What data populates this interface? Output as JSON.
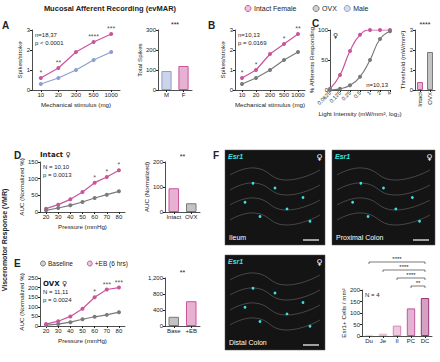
{
  "figure": {
    "title": "Mucosal Afferent Recording (evMAR)",
    "side_title": "Visceromotor Response (VMR)",
    "legend": [
      {
        "name": "Intact Female",
        "color": "#c9559c"
      },
      {
        "name": "OVX",
        "color": "#7a7a7a"
      },
      {
        "name": "Male",
        "color": "#8c9fce"
      }
    ]
  },
  "chart_data": [
    {
      "panel": "A",
      "type": "line",
      "x_label": "Mechanical stimulus (mg)",
      "y_label": "Spikes/stroke",
      "categories": [
        "10",
        "20",
        "200",
        "500",
        "1000"
      ],
      "series": [
        {
          "name": "Intact Female",
          "color": "#c9559c",
          "values": [
            0.6,
            1.1,
            1.9,
            2.4,
            2.8
          ]
        },
        {
          "name": "Male",
          "color": "#8c9fce",
          "values": [
            0.3,
            0.6,
            1.0,
            1.5,
            1.9
          ]
        }
      ],
      "ylim": [
        0,
        3
      ],
      "yticks": [
        0,
        1,
        2,
        3
      ],
      "grid": false,
      "annotations": [
        {
          "text": "*",
          "x": "10"
        },
        {
          "text": "**",
          "x": "20"
        },
        {
          "text": "****",
          "x": "500"
        },
        {
          "text": "***",
          "x": "1000"
        }
      ],
      "stats": [
        "n=18,37",
        "p < 0.0001"
      ]
    },
    {
      "type": "bar",
      "y_label": "Total Spikes",
      "categories": [
        "M",
        "F"
      ],
      "values": [
        95,
        120
      ],
      "colors": [
        "#8c9fce",
        "#c9559c"
      ],
      "ylim": [
        0,
        300
      ],
      "yticks": [
        0,
        100,
        200,
        300
      ],
      "grid": false,
      "annotations": [
        {
          "text": "***"
        }
      ]
    },
    {
      "panel": "B",
      "type": "line",
      "x_label": "Mechanical stimulus (mg)",
      "y_label": "Spikes/stroke",
      "categories": [
        "10",
        "20",
        "200",
        "500",
        "1000"
      ],
      "series": [
        {
          "name": "Intact Female",
          "color": "#c9559c",
          "values": [
            0.6,
            1.0,
            1.8,
            2.3,
            2.8
          ]
        },
        {
          "name": "OVX",
          "color": "#7a7a7a",
          "values": [
            0.3,
            0.6,
            1.0,
            1.5,
            1.9
          ]
        }
      ],
      "ylim": [
        0,
        3
      ],
      "yticks": [
        0,
        1,
        2,
        3
      ],
      "grid": false,
      "annotations": [
        {
          "text": "*",
          "x": "10"
        },
        {
          "text": "*",
          "x": "20"
        },
        {
          "text": "*",
          "x": "500"
        },
        {
          "text": "**",
          "x": "1000"
        }
      ],
      "stats": [
        "n=10,13",
        "p = 0.0169"
      ]
    },
    {
      "panel": "C",
      "type": "line",
      "log": "x",
      "heading": "♀",
      "x_label": "Light Intensity (mW/mm², log₂)",
      "y_label": "% Afferents Responding",
      "x": [
        0.0625,
        0.125,
        0.25,
        0.5,
        1,
        2,
        4
      ],
      "series": [
        {
          "name": "Intact Female",
          "color": "#c9559c",
          "values": [
            2,
            25,
            65,
            92,
            100,
            100,
            100
          ]
        },
        {
          "name": "OVX",
          "color": "#7a7a7a",
          "values": [
            0,
            2,
            8,
            22,
            50,
            85,
            98
          ]
        }
      ],
      "xlim": [
        0.0625,
        4
      ],
      "xticks": [
        0.0625,
        0.125,
        0.25,
        0.5,
        1,
        2,
        4
      ],
      "ylim": [
        0,
        100
      ],
      "yticks": [
        0,
        50,
        100
      ],
      "grid": false,
      "stats": [
        "n=10,13"
      ]
    },
    {
      "type": "bar",
      "y_label": "Threshold (mW/mm²)",
      "categories": [
        "Intact",
        "OVX"
      ],
      "values": [
        0.4,
        1.9
      ],
      "colors": [
        "#c9559c",
        "#7a7a7a"
      ],
      "ylim": [
        0,
        3
      ],
      "yticks": [
        0,
        1,
        2,
        3
      ],
      "grid": false,
      "annotations": [
        {
          "text": "****"
        }
      ]
    },
    {
      "panel": "D",
      "type": "line",
      "heading": "Intact ♀",
      "x_label": "Pressure (mmHg)",
      "y_label": "AUC (Normalized %)",
      "categories": [
        "20",
        "30",
        "40",
        "50",
        "60",
        "70",
        "80"
      ],
      "series": [
        {
          "name": "Intact Female",
          "color": "#c9559c",
          "values": [
            10,
            22,
            38,
            60,
            88,
            105,
            125
          ]
        },
        {
          "name": "OVX",
          "color": "#7a7a7a",
          "values": [
            5,
            12,
            20,
            30,
            42,
            52,
            62
          ]
        }
      ],
      "ylim": [
        0,
        150
      ],
      "yticks": [
        0,
        50,
        100,
        150
      ],
      "grid": false,
      "annotations": [
        {
          "text": "*",
          "x": "60"
        },
        {
          "text": "*",
          "x": "70"
        },
        {
          "text": "*",
          "x": "80"
        }
      ],
      "stats": [
        "N = 10,10",
        "p = 0.0013"
      ]
    },
    {
      "type": "bar",
      "y_label": "AUC (Normalized)",
      "categories": [
        "Intact",
        "OVX"
      ],
      "values": [
        95,
        35
      ],
      "colors": [
        "#c9559c",
        "#7a7a7a"
      ],
      "ylim": [
        0,
        200
      ],
      "yticks": [
        0,
        100,
        200
      ],
      "grid": false,
      "annotations": [
        {
          "text": "**"
        }
      ]
    },
    {
      "panel": "E",
      "type": "line",
      "heading": "OVX ♀",
      "x_label": "Pressure (mmHg)",
      "y_label": "AUC (Normalized %)",
      "categories": [
        "20",
        "30",
        "40",
        "50",
        "60",
        "70",
        "80"
      ],
      "series": [
        {
          "name": "Baseline",
          "color": "#7a7a7a",
          "values": [
            5,
            10,
            20,
            35,
            48,
            58,
            72
          ]
        },
        {
          "name": "+EB (6 hrs)",
          "color": "#c9559c",
          "values": [
            10,
            25,
            50,
            90,
            150,
            190,
            200
          ]
        }
      ],
      "ylim": [
        0,
        250
      ],
      "yticks": [
        0,
        50,
        100,
        150,
        200,
        250
      ],
      "grid": false,
      "legend": "top",
      "annotations": [
        {
          "text": "*",
          "x": "60"
        },
        {
          "text": "***",
          "x": "70"
        },
        {
          "text": "***",
          "x": "80"
        }
      ],
      "stats": [
        "N = 11,11",
        "p = 0.0024"
      ]
    },
    {
      "type": "bar",
      "categories": [
        "Base",
        "+EB"
      ],
      "values": [
        230,
        620
      ],
      "colors": [
        "#7a7a7a",
        "#c9559c"
      ],
      "ylim": [
        0,
        1200
      ],
      "yticks": [
        0,
        400,
        800,
        1200
      ],
      "grid": false,
      "annotations": [
        {
          "text": "**"
        }
      ]
    },
    {
      "type": "bar",
      "y_label": "Esr1+ Cells / mm²",
      "categories": [
        "Du",
        "Je",
        "Il",
        "PC",
        "DC"
      ],
      "values": [
        5,
        10,
        45,
        120,
        165
      ],
      "colors": [
        "#f3d3e6",
        "#e8b1d1",
        "#d784b8",
        "#c2569b",
        "#9d2f78"
      ],
      "ylim": [
        0,
        200
      ],
      "yticks": [
        0,
        50,
        100,
        150,
        200
      ],
      "grid": false,
      "annotations": [
        {
          "text": "**",
          "from": "PC",
          "to": "DC"
        },
        {
          "text": "****",
          "from": "Il",
          "to": "DC"
        },
        {
          "text": "****",
          "from": "Je",
          "to": "DC"
        },
        {
          "text": "****",
          "from": "Du",
          "to": "DC"
        }
      ],
      "stats": [
        "N = 4"
      ]
    }
  ],
  "images": {
    "panel": "F",
    "tiles": [
      {
        "label": "Ileum",
        "stain": "Esr1",
        "sex": "♀"
      },
      {
        "label": "Proximal Colon",
        "stain": "Esr1",
        "sex": "♀"
      },
      {
        "label": "Distal Colon",
        "stain": "Esr1",
        "sex": "♀"
      }
    ]
  }
}
